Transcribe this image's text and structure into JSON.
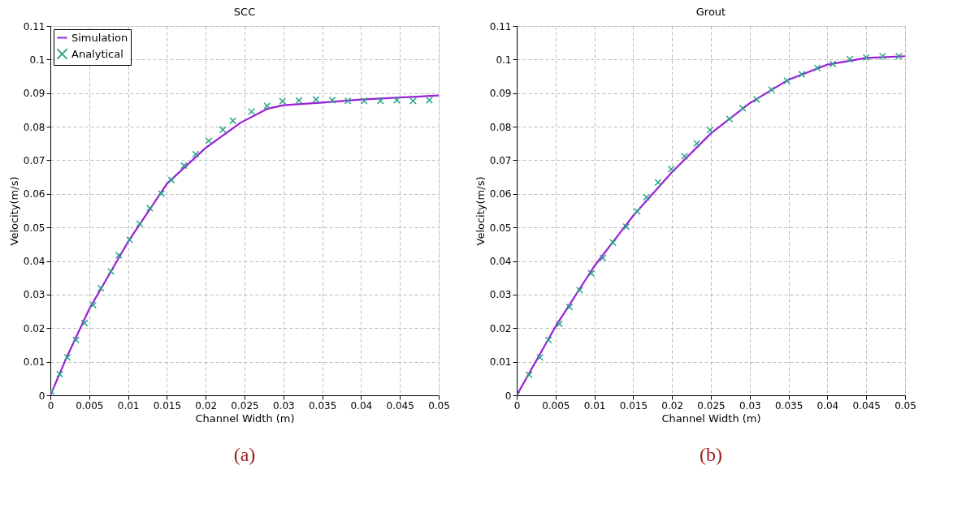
{
  "chart_data": [
    {
      "type": "line",
      "title": "SCC",
      "xlabel": "Channel Width (m)",
      "ylabel": "Velocity(m/s)",
      "xlim": [
        0,
        0.05
      ],
      "ylim": [
        0,
        0.11
      ],
      "xticks": [
        0,
        0.005,
        0.01,
        0.015,
        0.02,
        0.025,
        0.03,
        0.035,
        0.04,
        0.045,
        0.05
      ],
      "yticks": [
        0,
        0.01,
        0.02,
        0.03,
        0.04,
        0.05,
        0.06,
        0.07,
        0.08,
        0.09,
        0.1,
        0.11
      ],
      "grid": true,
      "legend": "top left",
      "annotations": [
        "(a)"
      ],
      "series": [
        {
          "name": "Simulation",
          "color": "#9b1fd6",
          "marker": "none",
          "line_style": "solid",
          "x": [
            0,
            0.002,
            0.005,
            0.01,
            0.015,
            0.02,
            0.0245,
            0.0279,
            0.03,
            0.035,
            0.04,
            0.045,
            0.05
          ],
          "values": [
            0,
            0.0108,
            0.0257,
            0.0457,
            0.063,
            0.0737,
            0.0812,
            0.0853,
            0.0864,
            0.0872,
            0.0881,
            0.0887,
            0.0893
          ]
        },
        {
          "name": "Analytical",
          "type": "scatter",
          "color": "#2aa58a",
          "marker": "cross",
          "x": [
            0.0001,
            0.0012,
            0.0022,
            0.0033,
            0.0044,
            0.0055,
            0.0065,
            0.0078,
            0.0088,
            0.0102,
            0.0115,
            0.0128,
            0.0143,
            0.0156,
            0.0172,
            0.0187,
            0.0204,
            0.0222,
            0.0235,
            0.0259,
            0.0279,
            0.0299,
            0.032,
            0.0342,
            0.0363,
            0.0383,
            0.0404,
            0.0425,
            0.0446,
            0.0467,
            0.0488
          ],
          "values": [
            0.0012,
            0.0063,
            0.0113,
            0.0165,
            0.0215,
            0.0269,
            0.0319,
            0.0369,
            0.0417,
            0.0463,
            0.0511,
            0.0557,
            0.0601,
            0.0641,
            0.0684,
            0.0718,
            0.0758,
            0.0791,
            0.0818,
            0.0845,
            0.0862,
            0.0876,
            0.0878,
            0.0881,
            0.0879,
            0.0877,
            0.0877,
            0.0877,
            0.0879,
            0.0877,
            0.0879
          ]
        }
      ]
    },
    {
      "type": "line",
      "title": "Grout",
      "xlabel": "Channel Width (m)",
      "ylabel": "Velocity(m/s)",
      "xlim": [
        0,
        0.05
      ],
      "ylim": [
        0,
        0.11
      ],
      "xticks": [
        0,
        0.005,
        0.01,
        0.015,
        0.02,
        0.025,
        0.03,
        0.035,
        0.04,
        0.045,
        0.05
      ],
      "yticks": [
        0,
        0.01,
        0.02,
        0.03,
        0.04,
        0.05,
        0.06,
        0.07,
        0.08,
        0.09,
        0.1,
        0.11
      ],
      "grid": true,
      "legend": "top left",
      "annotations": [
        "(b)"
      ],
      "series": [
        {
          "name": "Simulation",
          "color": "#9b1fd6",
          "marker": "none",
          "line_style": "solid",
          "x": [
            0,
            0.005,
            0.01,
            0.015,
            0.02,
            0.025,
            0.03,
            0.035,
            0.04,
            0.045,
            0.05
          ],
          "values": [
            0,
            0.0205,
            0.0385,
            0.0535,
            0.0665,
            0.078,
            0.087,
            0.094,
            0.0985,
            0.1005,
            0.101
          ]
        },
        {
          "name": "Analytical",
          "type": "scatter",
          "color": "#2aa58a",
          "marker": "cross",
          "x": [
            0,
            0.0016,
            0.003,
            0.0041,
            0.0055,
            0.0068,
            0.0081,
            0.0096,
            0.0111,
            0.0124,
            0.0141,
            0.0155,
            0.0167,
            0.0182,
            0.0199,
            0.0216,
            0.0232,
            0.0249,
            0.0274,
            0.0291,
            0.0309,
            0.0328,
            0.0348,
            0.0367,
            0.0387,
            0.0407,
            0.0429,
            0.045,
            0.0471,
            0.0492
          ],
          "values": [
            0,
            0.0061,
            0.0113,
            0.0165,
            0.0213,
            0.0263,
            0.0313,
            0.0363,
            0.0409,
            0.0455,
            0.0502,
            0.0548,
            0.059,
            0.0634,
            0.0674,
            0.0712,
            0.075,
            0.079,
            0.0823,
            0.0855,
            0.0881,
            0.091,
            0.0937,
            0.0956,
            0.0975,
            0.0987,
            0.1001,
            0.1006,
            0.101,
            0.101
          ]
        }
      ]
    }
  ]
}
